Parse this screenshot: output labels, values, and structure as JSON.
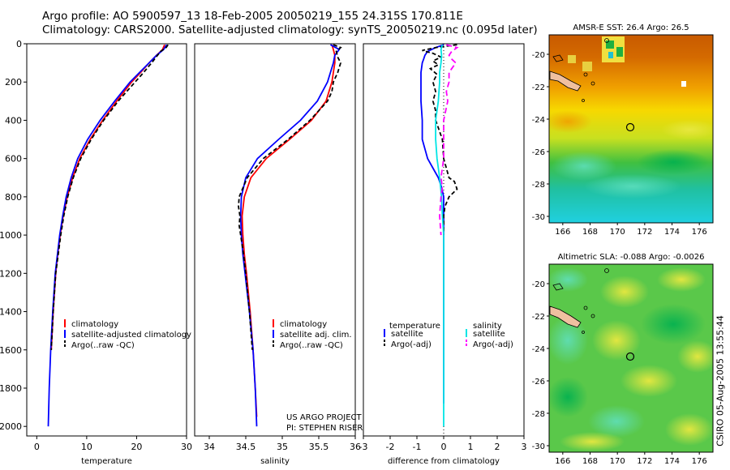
{
  "header": {
    "line1": "Argo profile: AO 5900597_13 18-Feb-2005 20050219_155 24.315S 170.811E",
    "line2": "Climatology: CARS2000. Satellite-adjusted climatology: synTS_20050219.nc (0.095d later)"
  },
  "footer_vertical": "CSIRO 05-Aug-2005 13:55:44",
  "colors": {
    "climatology": "#ff0000",
    "satellite": "#0000ff",
    "argo": "#000000",
    "cyan": "#00e5e5",
    "magenta": "#ff00ff"
  },
  "chart_data": [
    {
      "id": "temperature",
      "type": "line",
      "xlabel": "temperature",
      "ylabel": "",
      "xlim": [
        -2,
        30
      ],
      "ylim": [
        2050,
        0
      ],
      "xticks": [
        0,
        10,
        20,
        30
      ],
      "yticks": [
        0,
        200,
        400,
        600,
        800,
        1000,
        1200,
        1400,
        1600,
        1800,
        2000
      ],
      "legend": [
        "climatology",
        "satellite-adjusted climatology",
        "Argo(..raw -QC)"
      ],
      "annotations": [],
      "series": [
        {
          "name": "climatology",
          "color": "#ff0000",
          "dash": "",
          "depth": [
            5,
            30,
            60,
            100,
            150,
            200,
            300,
            400,
            500,
            600,
            700,
            800,
            900,
            1000,
            1100,
            1200,
            1400,
            1600
          ],
          "values": [
            25.6,
            25.2,
            24.0,
            22.5,
            20.8,
            19.0,
            16.0,
            13.2,
            10.7,
            8.6,
            7.2,
            6.1,
            5.3,
            4.7,
            4.2,
            3.8,
            3.3,
            2.9
          ]
        },
        {
          "name": "satellite-adjusted climatology",
          "color": "#0000ff",
          "dash": "",
          "depth": [
            5,
            30,
            60,
            100,
            150,
            200,
            300,
            400,
            500,
            600,
            700,
            800,
            900,
            1000,
            1200,
            1400,
            1600,
            1800,
            2000
          ],
          "values": [
            26.0,
            25.4,
            24.0,
            22.5,
            20.6,
            18.7,
            15.6,
            12.7,
            10.2,
            8.2,
            6.9,
            5.9,
            5.2,
            4.6,
            3.7,
            3.2,
            2.8,
            2.5,
            2.3
          ]
        },
        {
          "name": "Argo(..raw -QC)",
          "color": "#000000",
          "dash": "5,3",
          "depth": [
            5,
            20,
            40,
            70,
            100,
            150,
            200,
            250,
            300,
            400,
            500,
            600,
            700,
            800,
            900,
            1000,
            1100,
            1200,
            1400,
            1600
          ],
          "values": [
            26.3,
            25.9,
            24.8,
            23.9,
            23.0,
            21.4,
            19.7,
            18.0,
            16.3,
            13.4,
            10.9,
            8.8,
            7.3,
            6.2,
            5.4,
            4.8,
            4.3,
            3.8,
            3.3,
            2.9
          ]
        }
      ]
    },
    {
      "id": "salinity",
      "type": "line",
      "xlabel": "salinity",
      "ylabel": "",
      "xlim": [
        33.8,
        36.0
      ],
      "ylim": [
        2050,
        0
      ],
      "xticks": [
        34,
        34.5,
        35,
        35.5,
        36
      ],
      "yticks": [],
      "legend": [
        "climatology",
        "satellite adj. clim.",
        "Argo(..raw -QC)"
      ],
      "annotations": [
        "US ARGO PROJECT",
        "PI: STEPHEN RISER"
      ],
      "series": [
        {
          "name": "climatology",
          "color": "#ff0000",
          "dash": "",
          "depth": [
            5,
            30,
            60,
            100,
            150,
            200,
            300,
            400,
            500,
            600,
            700,
            800,
            900,
            1000,
            1100,
            1200,
            1400,
            1600,
            1800,
            1950
          ],
          "values": [
            35.68,
            35.7,
            35.72,
            35.72,
            35.7,
            35.68,
            35.6,
            35.4,
            35.1,
            34.78,
            34.57,
            34.48,
            34.45,
            34.46,
            34.48,
            34.51,
            34.56,
            34.6,
            34.63,
            34.65
          ]
        },
        {
          "name": "satellite adj. clim.",
          "color": "#0000ff",
          "dash": "",
          "depth": [
            5,
            30,
            60,
            100,
            150,
            200,
            300,
            400,
            500,
            600,
            700,
            800,
            900,
            1000,
            1100,
            1200,
            1400,
            1600,
            1800,
            2000
          ],
          "values": [
            35.66,
            35.78,
            35.72,
            35.7,
            35.66,
            35.62,
            35.48,
            35.25,
            34.95,
            34.66,
            34.5,
            34.44,
            34.43,
            34.44,
            34.46,
            34.49,
            34.55,
            34.6,
            34.63,
            34.65
          ]
        },
        {
          "name": "Argo(..raw -QC)",
          "color": "#000000",
          "dash": "5,3",
          "depth": [
            5,
            20,
            40,
            70,
            100,
            150,
            200,
            250,
            300,
            400,
            500,
            600,
            700,
            800,
            850,
            900,
            950,
            1000,
            1050,
            1100,
            1200,
            1400,
            1600
          ],
          "values": [
            35.7,
            35.8,
            35.74,
            35.76,
            35.8,
            35.76,
            35.7,
            35.68,
            35.62,
            35.38,
            35.08,
            34.74,
            34.52,
            34.41,
            34.4,
            34.42,
            34.41,
            34.43,
            34.45,
            34.47,
            34.5,
            34.55,
            34.59
          ]
        }
      ]
    },
    {
      "id": "difference",
      "type": "line",
      "xlabel": "difference from climatology",
      "ylabel": "",
      "xlim": [
        -3,
        3
      ],
      "ylim": [
        2050,
        0
      ],
      "xticks": [
        -3,
        -2,
        -1,
        0,
        1,
        2,
        3
      ],
      "yticks": [],
      "legend_left_title": "temperature",
      "legend_left": [
        "satellite",
        "Argo(-adj)"
      ],
      "legend_right_title": "salinity",
      "legend_right": [
        "satellite",
        "Argo(-adj)"
      ],
      "annotations": [],
      "series": [
        {
          "name": "temperature satellite",
          "color": "#0000ff",
          "dash": "",
          "depth": [
            5,
            20,
            40,
            60,
            80,
            100,
            150,
            200,
            300,
            400,
            500,
            600,
            650,
            700,
            750,
            800,
            900,
            1000,
            1200,
            1400,
            1600,
            1800,
            1880
          ],
          "values": [
            0.0,
            -0.3,
            -0.6,
            -0.7,
            -0.75,
            -0.8,
            -0.85,
            -0.85,
            -0.85,
            -0.8,
            -0.8,
            -0.6,
            -0.4,
            -0.2,
            -0.08,
            0.0,
            0.0,
            0.0,
            0.0,
            0.0,
            0.0,
            0.0,
            0.0
          ]
        },
        {
          "name": "temperature Argo(-adj)",
          "color": "#000000",
          "dash": "5,3",
          "depth": [
            5,
            20,
            35,
            50,
            70,
            90,
            110,
            130,
            160,
            200,
            250,
            300,
            350,
            400,
            500,
            600,
            700,
            720,
            760,
            800,
            850,
            900,
            950,
            1000
          ],
          "values": [
            0.5,
            -0.3,
            -0.8,
            -0.4,
            -0.1,
            -0.4,
            -0.2,
            -0.5,
            -0.25,
            -0.4,
            -0.3,
            -0.4,
            -0.3,
            -0.3,
            -0.05,
            0.0,
            0.2,
            0.4,
            0.5,
            0.2,
            0.05,
            0.0,
            0.0,
            0.0
          ]
        },
        {
          "name": "salinity satellite",
          "color": "#00e5e5",
          "dash": "",
          "depth": [
            5,
            30,
            60,
            100,
            150,
            200,
            300,
            400,
            500,
            600,
            700,
            800,
            900,
            1000,
            1100,
            1200,
            1400,
            1600,
            1800,
            2000
          ],
          "values": [
            -0.05,
            -0.1,
            -0.08,
            -0.1,
            -0.15,
            -0.15,
            -0.2,
            -0.3,
            -0.3,
            -0.25,
            -0.15,
            -0.08,
            -0.05,
            0.0,
            0.0,
            0.0,
            0.0,
            0.0,
            0.0,
            0.0
          ]
        },
        {
          "name": "salinity Argo(-adj)",
          "color": "#ff00ff",
          "dash": "7,4",
          "depth": [
            5,
            20,
            40,
            60,
            80,
            100,
            150,
            200,
            250,
            300,
            400,
            500,
            600,
            700,
            750,
            800,
            900,
            1000
          ],
          "values": [
            0.1,
            0.5,
            0.3,
            0.2,
            0.3,
            0.45,
            0.2,
            0.2,
            0.1,
            0.15,
            0.0,
            0.0,
            0.0,
            -0.1,
            -0.05,
            -0.1,
            -0.15,
            -0.1
          ]
        }
      ]
    },
    {
      "id": "sst_map",
      "type": "heatmap",
      "title": "AMSR-E SST: 26.4 Argo: 26.5",
      "xlim": [
        165,
        177
      ],
      "ylim": [
        -30.4,
        -18.8
      ],
      "xticks": [
        166,
        168,
        170,
        172,
        174,
        176
      ],
      "yticks": [
        -20,
        -22,
        -24,
        -26,
        -28,
        -30
      ],
      "argo_position": {
        "lon": 170.811,
        "lat": -24.315
      }
    },
    {
      "id": "sla_map",
      "type": "heatmap",
      "title": "Altimetric SLA: -0.088 Argo: -0.0026",
      "xlim": [
        165,
        177
      ],
      "ylim": [
        -30.4,
        -18.8
      ],
      "xticks": [
        166,
        168,
        170,
        172,
        174,
        176
      ],
      "yticks": [
        -20,
        -22,
        -24,
        -26,
        -28,
        -30
      ],
      "argo_position": {
        "lon": 170.811,
        "lat": -24.315
      }
    }
  ]
}
